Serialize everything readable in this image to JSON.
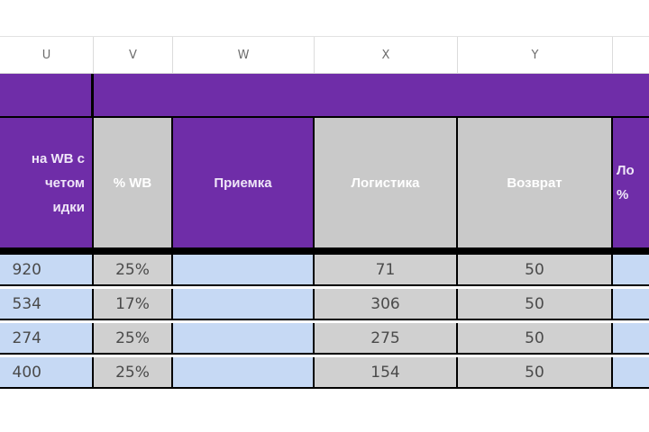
{
  "column_headers": [
    "U",
    "V",
    "W",
    "X",
    "Y",
    ""
  ],
  "headers": {
    "u": "на WB с\nчетом\nидки",
    "v": "% WB",
    "w": "Приемка",
    "x": "Логистика",
    "y": "Возврат",
    "z": "Ло\n%"
  },
  "rows": [
    {
      "u": "920",
      "v": "25%",
      "w": "",
      "x": "71",
      "y": "50",
      "z": ""
    },
    {
      "u": "534",
      "v": "17%",
      "w": "",
      "x": "306",
      "y": "50",
      "z": ""
    },
    {
      "u": "274",
      "v": "25%",
      "w": "",
      "x": "275",
      "y": "50",
      "z": ""
    },
    {
      "u": "400",
      "v": "25%",
      "w": "",
      "x": "154",
      "y": "50",
      "z": ""
    }
  ],
  "colors": {
    "purple": "#6f2da8",
    "blue": "#c6d9f4",
    "gray": "#d0d0d0"
  }
}
